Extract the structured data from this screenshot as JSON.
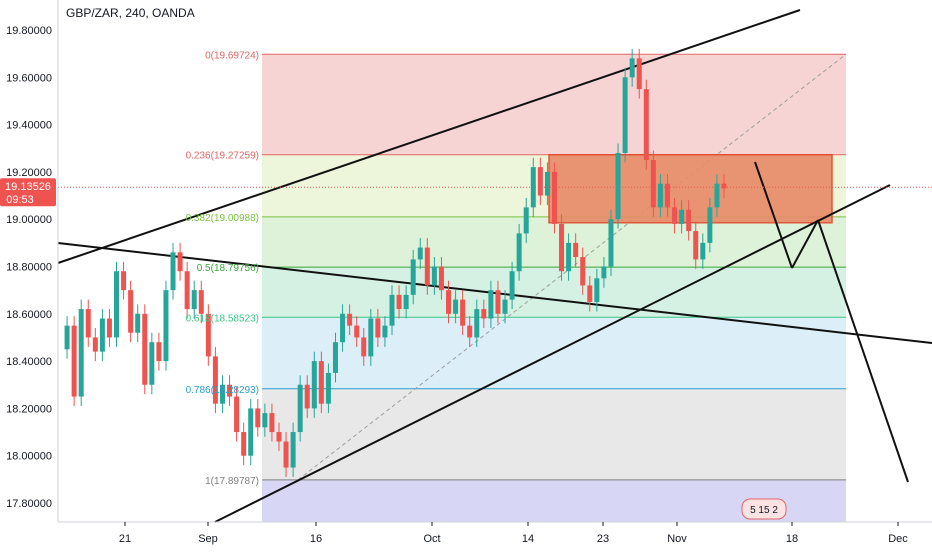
{
  "header": {
    "title": "GBP/ZAR, 240, OANDA"
  },
  "price_label": {
    "value": "19.13526",
    "countdown": "09:53"
  },
  "chart_data": {
    "type": "candlestick",
    "title": "GBP/ZAR, 240, OANDA",
    "y_ticks": [
      "19.80000",
      "19.60000",
      "19.40000",
      "19.20000",
      "19.00000",
      "18.80000",
      "18.60000",
      "18.40000",
      "18.20000",
      "18.00000",
      "17.80000"
    ],
    "x_ticks": [
      "21",
      "Sep",
      "16",
      "Oct",
      "14",
      "23",
      "Nov",
      "18",
      "Dec"
    ],
    "ylim": [
      17.78,
      19.88
    ],
    "fib_levels": [
      {
        "ratio": "0",
        "value": 19.69724,
        "label": "0(19.69724)"
      },
      {
        "ratio": "0.236",
        "value": 19.27259,
        "label": "0.236(19.27259)"
      },
      {
        "ratio": "0.382",
        "value": 19.00988,
        "label": "0.382(19.00988)"
      },
      {
        "ratio": "0.5",
        "value": 18.79756,
        "label": "0.5(18.79756)"
      },
      {
        "ratio": "0.618",
        "value": 18.58523,
        "label": "0.618(18.58523)"
      },
      {
        "ratio": "0.786",
        "value": 18.28293,
        "label": "0.786(18.28293)"
      },
      {
        "ratio": "1",
        "value": 17.89787,
        "label": "1(17.89787)"
      }
    ],
    "current_price": 19.13526,
    "zone": {
      "top": 19.27259,
      "bottom": 18.985
    },
    "badge": "5 15 2",
    "price_path": [
      [
        0,
        18.45
      ],
      [
        4,
        18.55
      ],
      [
        8,
        18.25
      ],
      [
        12,
        18.62
      ],
      [
        16,
        18.5
      ],
      [
        20,
        18.44
      ],
      [
        24,
        18.58
      ],
      [
        28,
        18.5
      ],
      [
        32,
        18.78
      ],
      [
        36,
        18.7
      ],
      [
        40,
        18.52
      ],
      [
        44,
        18.6
      ],
      [
        48,
        18.3
      ],
      [
        52,
        18.48
      ],
      [
        56,
        18.4
      ],
      [
        60,
        18.7
      ],
      [
        64,
        18.86
      ],
      [
        68,
        18.78
      ],
      [
        72,
        18.62
      ],
      [
        76,
        18.7
      ],
      [
        80,
        18.6
      ],
      [
        84,
        18.42
      ],
      [
        88,
        18.22
      ],
      [
        92,
        18.3
      ],
      [
        96,
        18.25
      ],
      [
        100,
        18.1
      ],
      [
        104,
        18.0
      ],
      [
        108,
        18.2
      ],
      [
        112,
        18.12
      ],
      [
        116,
        18.18
      ],
      [
        120,
        18.1
      ],
      [
        124,
        18.06
      ],
      [
        128,
        17.95
      ],
      [
        132,
        18.1
      ],
      [
        136,
        18.3
      ],
      [
        140,
        18.2
      ],
      [
        144,
        18.4
      ],
      [
        148,
        18.22
      ],
      [
        152,
        18.35
      ],
      [
        156,
        18.48
      ],
      [
        160,
        18.6
      ],
      [
        164,
        18.55
      ],
      [
        168,
        18.5
      ],
      [
        172,
        18.42
      ],
      [
        176,
        18.58
      ],
      [
        180,
        18.5
      ],
      [
        184,
        18.55
      ],
      [
        188,
        18.68
      ],
      [
        192,
        18.62
      ],
      [
        196,
        18.68
      ],
      [
        200,
        18.83
      ],
      [
        204,
        18.88
      ],
      [
        208,
        18.72
      ],
      [
        212,
        18.8
      ],
      [
        216,
        18.7
      ],
      [
        220,
        18.6
      ],
      [
        224,
        18.66
      ],
      [
        228,
        18.55
      ],
      [
        232,
        18.5
      ],
      [
        236,
        18.62
      ],
      [
        240,
        18.58
      ],
      [
        244,
        18.7
      ],
      [
        248,
        18.6
      ],
      [
        252,
        18.66
      ],
      [
        256,
        18.78
      ],
      [
        260,
        18.94
      ],
      [
        264,
        19.05
      ],
      [
        268,
        19.22
      ],
      [
        272,
        19.1
      ],
      [
        276,
        19.2
      ],
      [
        280,
        18.98
      ],
      [
        284,
        18.78
      ],
      [
        288,
        18.9
      ],
      [
        292,
        18.84
      ],
      [
        296,
        18.72
      ],
      [
        300,
        18.65
      ],
      [
        304,
        18.75
      ],
      [
        308,
        18.8
      ],
      [
        312,
        19.0
      ],
      [
        316,
        19.28
      ],
      [
        320,
        19.6
      ],
      [
        324,
        19.68
      ],
      [
        328,
        19.55
      ],
      [
        332,
        19.25
      ],
      [
        336,
        19.05
      ],
      [
        340,
        19.15
      ],
      [
        344,
        19.05
      ],
      [
        348,
        18.98
      ],
      [
        352,
        19.04
      ],
      [
        356,
        18.95
      ],
      [
        360,
        18.83
      ],
      [
        364,
        18.9
      ],
      [
        368,
        19.05
      ],
      [
        372,
        19.15
      ],
      [
        376,
        19.13
      ]
    ]
  }
}
